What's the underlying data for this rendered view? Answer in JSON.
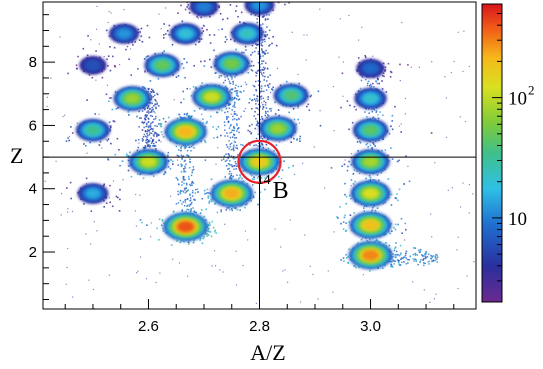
{
  "chart_data": {
    "type": "heatmap",
    "title": "",
    "xlabel": "A/Z",
    "ylabel": "Z",
    "xlim": [
      2.41,
      3.19
    ],
    "ylim": [
      0.2,
      9.9
    ],
    "xticks": [
      2.6,
      2.8,
      3.0
    ],
    "xtick_labels": [
      "2.6",
      "2.8",
      "3.0"
    ],
    "yticks": [
      2,
      4,
      6,
      8
    ],
    "ytick_labels": [
      "2",
      "4",
      "6",
      "8"
    ],
    "scale": "log",
    "colorbar": {
      "range": [
        2,
        600
      ],
      "ticks": [
        {
          "value": 10,
          "base": "10",
          "exp": ""
        },
        {
          "value": 100,
          "base": "10",
          "exp": "2"
        }
      ]
    },
    "crosshair": {
      "x": 2.8,
      "y": 5
    },
    "highlight": {
      "x": 2.8,
      "y": 4.85,
      "color": "#e8202a"
    },
    "annotation": {
      "mass": "14",
      "element": "B",
      "x": 2.82,
      "y": 3.9
    },
    "clusters": [
      {
        "x": 2.667,
        "y": 2.8,
        "intensity": 600
      },
      {
        "x": 2.75,
        "y": 3.85,
        "intensity": 320
      },
      {
        "x": 2.6,
        "y": 4.85,
        "intensity": 140
      },
      {
        "x": 2.8,
        "y": 4.85,
        "intensity": 220
      },
      {
        "x": 2.667,
        "y": 5.8,
        "intensity": 300
      },
      {
        "x": 2.833,
        "y": 5.9,
        "intensity": 90
      },
      {
        "x": 2.571,
        "y": 6.85,
        "intensity": 90
      },
      {
        "x": 2.714,
        "y": 6.9,
        "intensity": 140
      },
      {
        "x": 2.857,
        "y": 6.95,
        "intensity": 45
      },
      {
        "x": 2.625,
        "y": 7.9,
        "intensity": 55
      },
      {
        "x": 2.75,
        "y": 7.95,
        "intensity": 65
      },
      {
        "x": 2.667,
        "y": 8.9,
        "intensity": 20
      },
      {
        "x": 2.778,
        "y": 8.9,
        "intensity": 25
      },
      {
        "x": 2.556,
        "y": 8.9,
        "intensity": 12
      },
      {
        "x": 2.7,
        "y": 9.75,
        "intensity": 10
      },
      {
        "x": 2.8,
        "y": 9.8,
        "intensity": 12
      },
      {
        "x": 2.5,
        "y": 5.85,
        "intensity": 35
      },
      {
        "x": 2.5,
        "y": 3.85,
        "intensity": 15
      },
      {
        "x": 2.5,
        "y": 7.9,
        "intensity": 6
      },
      {
        "x": 3.0,
        "y": 1.9,
        "intensity": 420
      },
      {
        "x": 3.0,
        "y": 2.85,
        "intensity": 260
      },
      {
        "x": 3.0,
        "y": 3.85,
        "intensity": 160
      },
      {
        "x": 3.0,
        "y": 4.85,
        "intensity": 100
      },
      {
        "x": 3.0,
        "y": 5.85,
        "intensity": 50
      },
      {
        "x": 3.0,
        "y": 6.85,
        "intensity": 22
      },
      {
        "x": 3.0,
        "y": 7.8,
        "intensity": 8
      }
    ]
  }
}
